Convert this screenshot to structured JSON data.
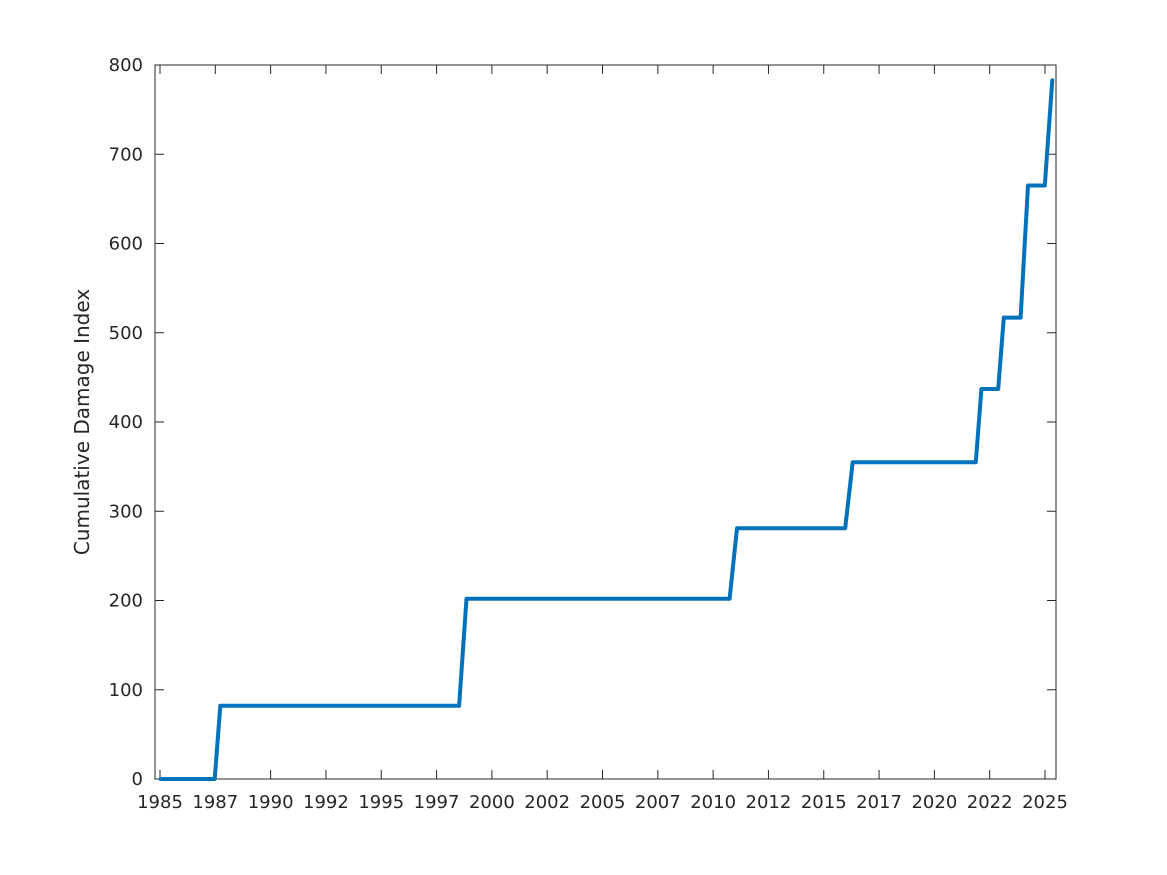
{
  "chart_data": {
    "type": "line",
    "title": "",
    "xlabel": "",
    "ylabel": "Cumulative Damage Index",
    "xlim": [
      "1985-06",
      "2025-09"
    ],
    "ylim": [
      0,
      800
    ],
    "x_tick_labels": [
      "1985",
      "1987",
      "1990",
      "1992",
      "1995",
      "1997",
      "2000",
      "2002",
      "2005",
      "2007",
      "2010",
      "2012",
      "2015",
      "2017",
      "2020",
      "2022",
      "2025"
    ],
    "y_tick_labels": [
      "0",
      "100",
      "200",
      "300",
      "400",
      "500",
      "600",
      "700",
      "800"
    ],
    "y_ticks": [
      0,
      100,
      200,
      300,
      400,
      500,
      600,
      700,
      800
    ],
    "grid": false,
    "color": "#0072BD",
    "series": [
      {
        "points": [
          [
            "1985-09",
            0
          ],
          [
            "1988-02",
            0
          ],
          [
            "1988-05",
            82
          ],
          [
            "1999-01",
            82
          ],
          [
            "1999-05",
            202
          ],
          [
            "2011-02",
            202
          ],
          [
            "2011-06",
            281
          ],
          [
            "2016-04",
            281
          ],
          [
            "2016-08",
            355
          ],
          [
            "2022-02",
            355
          ],
          [
            "2022-05",
            437
          ],
          [
            "2023-02",
            437
          ],
          [
            "2023-05",
            517
          ],
          [
            "2024-02",
            517
          ],
          [
            "2024-06",
            665
          ],
          [
            "2025-03",
            665
          ],
          [
            "2025-07",
            783
          ]
        ]
      }
    ]
  }
}
